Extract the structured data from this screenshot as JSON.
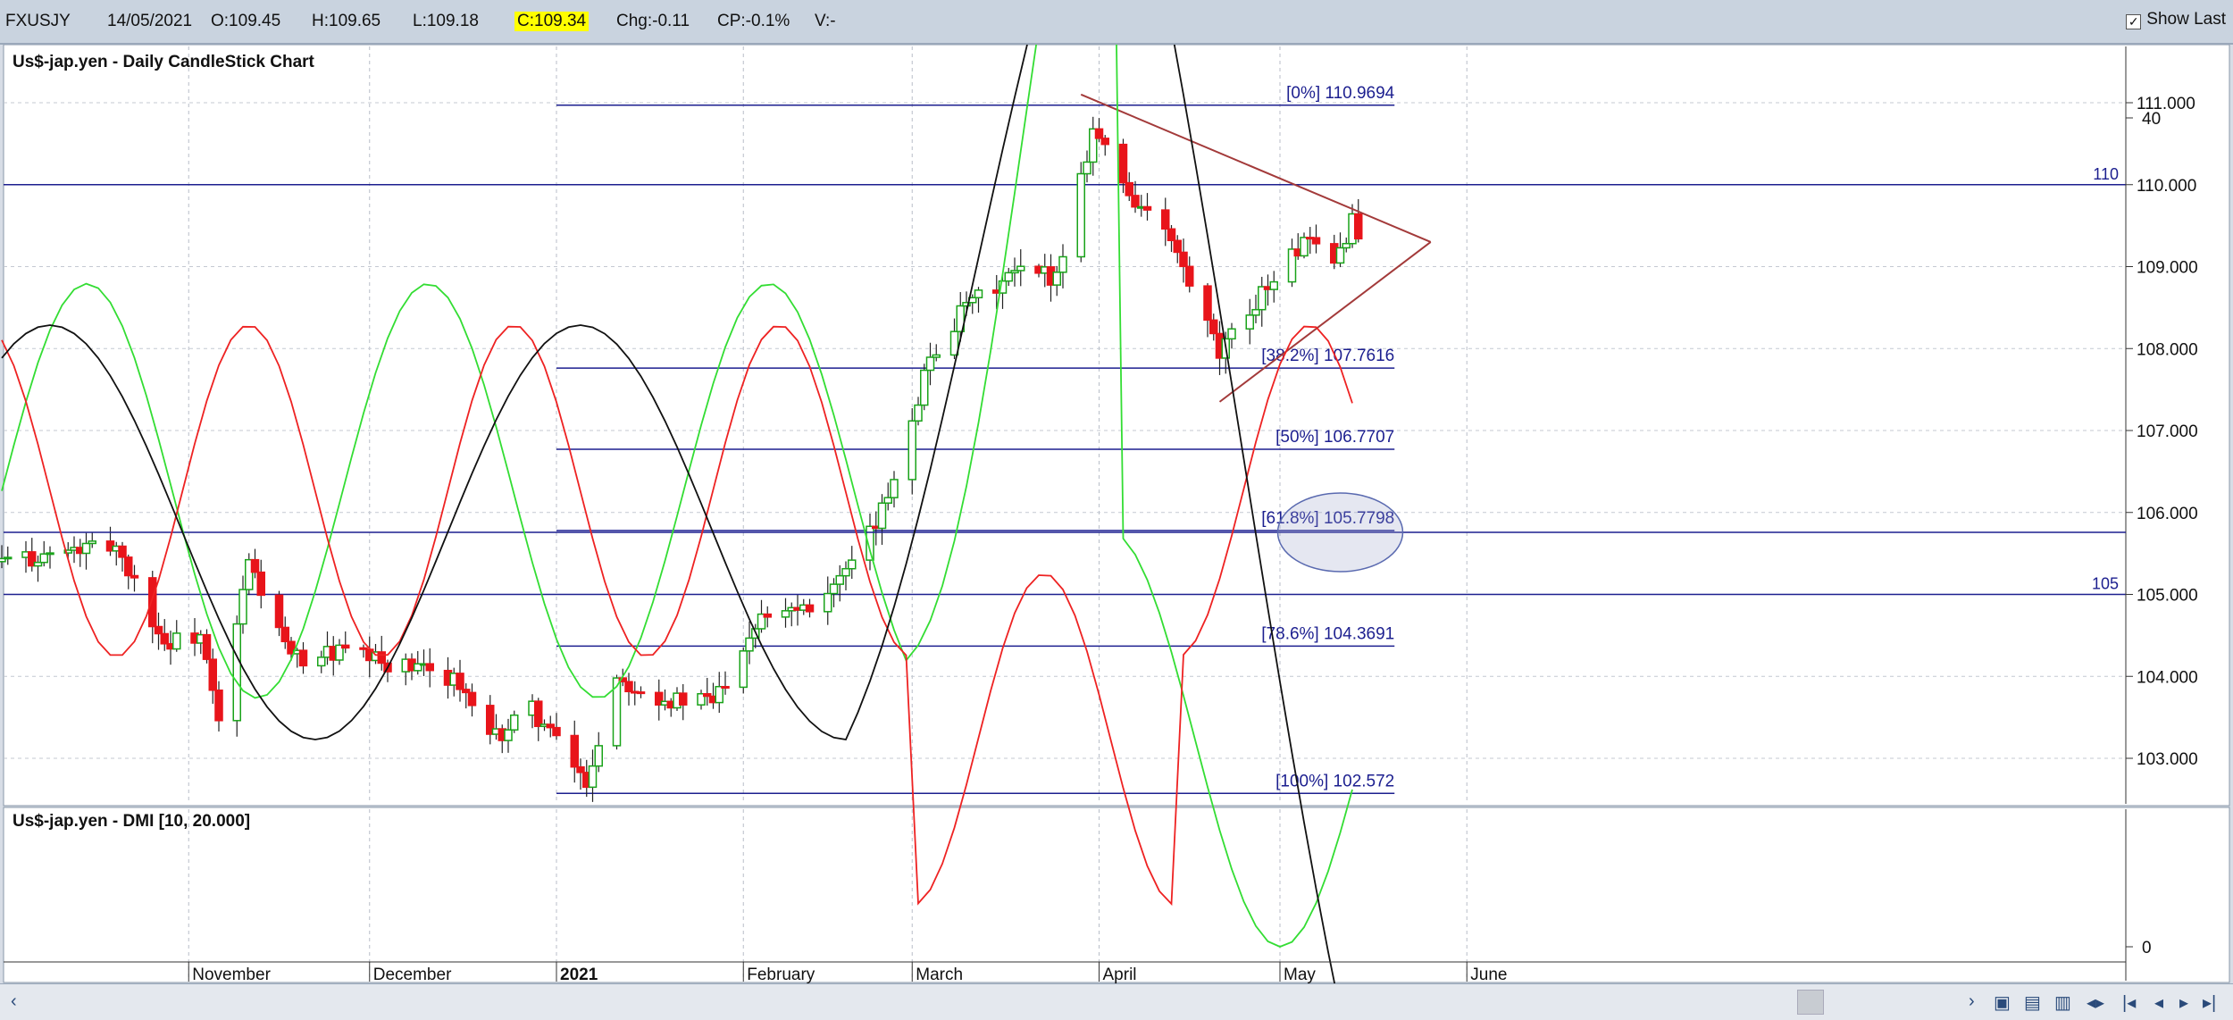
{
  "header": {
    "symbol": "FXUSJY",
    "date": "14/05/2021",
    "open": "O:109.45",
    "high": "H:109.65",
    "low": "L:109.18",
    "close": "C:109.34",
    "change": "Chg:-0.11",
    "change_pct": "CP:-0.1%",
    "volume": "V:-",
    "show_last_label": "Show Last",
    "show_last_checked": true
  },
  "colors": {
    "up": "#19a319",
    "down": "#e8141a",
    "highlight": "#ffff00",
    "fib_line": "#1c1f8f",
    "trendline": "#a33a3a",
    "dmi_plus": "#33dd33",
    "dmi_minus": "#ee2222",
    "adx": "#111111"
  },
  "chart_data": [
    {
      "type": "candlestick",
      "title": "Us$-jap.yen - Daily CandleStick Chart",
      "ylim": [
        102.5,
        111.3
      ],
      "y_ticks": [
        "111.000",
        "110.000",
        "109.000",
        "108.000",
        "107.000",
        "106.000",
        "105.000",
        "104.000",
        "103.000"
      ],
      "x_month_labels": [
        "November",
        "December",
        "2021",
        "February",
        "March",
        "April",
        "May",
        "June"
      ],
      "horizontal_lines": [
        {
          "value": 110,
          "label": "110"
        },
        {
          "value": 105,
          "label": "105"
        }
      ],
      "fibonacci_levels": [
        {
          "label": "[0%] 110.9694",
          "value": 110.9694
        },
        {
          "label": "[38.2%] 107.7616",
          "value": 107.7616
        },
        {
          "label": "[50%] 106.7707",
          "value": 106.7707
        },
        {
          "label": "[61.8%] 105.7798",
          "value": 105.7798
        },
        {
          "label": "[78.6%] 104.3691",
          "value": 104.3691
        },
        {
          "label": "[100%] 102.572",
          "value": 102.572
        }
      ],
      "trendlines": [
        {
          "from": [
            "2021-03-29",
            111.1
          ],
          "to": [
            "2021-05-26",
            109.3
          ]
        },
        {
          "from": [
            "2021-04-21",
            107.35
          ],
          "to": [
            "2021-05-26",
            109.3
          ]
        }
      ],
      "key_points": [
        {
          "date": "2021-01-06",
          "low": 102.57
        },
        {
          "date": "2021-03-31",
          "high": 110.97
        },
        {
          "date": "2021-04-23",
          "low": 107.48
        },
        {
          "date": "2021-05-14",
          "open": 109.45,
          "high": 109.65,
          "low": 109.18,
          "close": 109.34
        }
      ]
    },
    {
      "type": "line",
      "title": "Us$-jap.yen - DMI [10, 20.000]",
      "ylim": [
        0,
        60
      ],
      "y_ticks": [
        "40",
        "0"
      ],
      "reference_line": 20,
      "series": [],
      "annotation": "ellipse highlighting converging lines near latest date"
    }
  ],
  "toolbar": {
    "scroll_left": "‹",
    "scroll_right": "›"
  }
}
